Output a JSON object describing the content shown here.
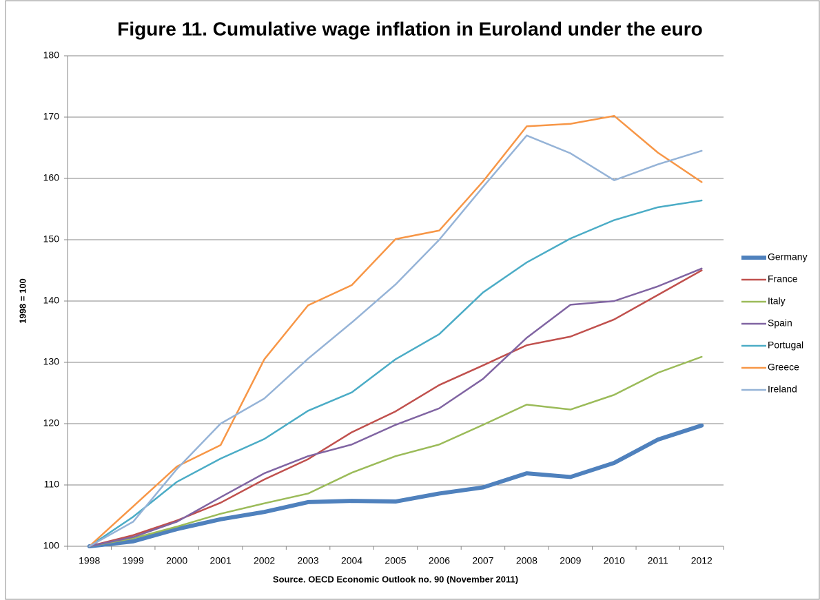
{
  "chart_data": {
    "type": "line",
    "title": "Figure 11. Cumulative wage inflation in Euroland under the euro",
    "y_label": "1998 = 100",
    "x_label": "Source. OECD Economic Outlook no. 90 (November 2011)",
    "categories": [
      "1998",
      "1999",
      "2000",
      "2001",
      "2002",
      "2003",
      "2004",
      "2005",
      "2006",
      "2007",
      "2008",
      "2009",
      "2010",
      "2011",
      "2012"
    ],
    "series": [
      {
        "name": "Germany",
        "color": "#4f81bd",
        "line_width": 6,
        "values": [
          100,
          100.8,
          102.8,
          104.4,
          105.6,
          107.2,
          107.4,
          107.3,
          108.6,
          109.6,
          111.9,
          111.3,
          113.6,
          117.4,
          119.7
        ]
      },
      {
        "name": "France",
        "color": "#c0504d",
        "line_width": 2.5,
        "values": [
          100,
          101.8,
          104.2,
          107.1,
          110.9,
          114.2,
          118.6,
          122.0,
          126.3,
          129.5,
          132.8,
          134.2,
          137.0,
          141.0,
          145.0
        ]
      },
      {
        "name": "Italy",
        "color": "#9bbb59",
        "line_width": 2.5,
        "values": [
          100,
          101.3,
          103.2,
          105.3,
          107.0,
          108.6,
          112.0,
          114.7,
          116.6,
          119.8,
          123.1,
          122.3,
          124.7,
          128.3,
          130.9
        ]
      },
      {
        "name": "Spain",
        "color": "#8064a2",
        "line_width": 2.5,
        "values": [
          100,
          101.5,
          104.0,
          108.0,
          111.9,
          114.7,
          116.6,
          119.8,
          122.5,
          127.3,
          134.0,
          139.4,
          140.0,
          142.4,
          145.3
        ]
      },
      {
        "name": "Portugal",
        "color": "#4bacc6",
        "line_width": 2.5,
        "values": [
          100,
          104.8,
          110.5,
          114.3,
          117.5,
          122.1,
          125.1,
          130.5,
          134.6,
          141.4,
          146.3,
          150.2,
          153.2,
          155.3,
          156.4
        ]
      },
      {
        "name": "Greece",
        "color": "#f79646",
        "line_width": 2.5,
        "values": [
          100,
          106.5,
          113.0,
          116.5,
          130.5,
          139.3,
          142.6,
          150.1,
          151.5,
          159.5,
          168.5,
          168.9,
          170.2,
          164.2,
          159.4
        ]
      },
      {
        "name": "Ireland",
        "color": "#95b3d7",
        "line_width": 2.5,
        "values": [
          100,
          104.0,
          112.6,
          120.0,
          124.1,
          130.6,
          136.5,
          142.7,
          150.0,
          158.6,
          167.0,
          164.1,
          159.7,
          162.3,
          164.5
        ]
      }
    ],
    "ylim": [
      100,
      180
    ],
    "yticks": [
      100,
      110,
      120,
      130,
      140,
      150,
      160,
      170,
      180
    ],
    "grid": true,
    "legend": "right"
  }
}
